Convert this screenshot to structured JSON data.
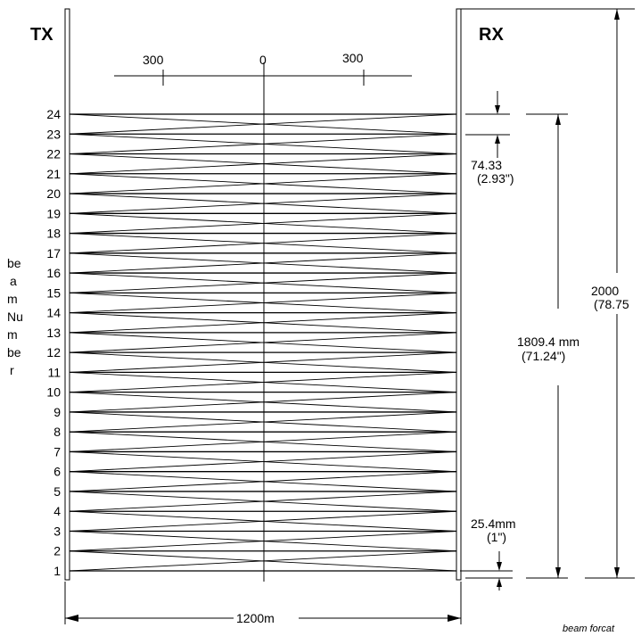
{
  "diagram": {
    "tx_label": "TX",
    "rx_label": "RX",
    "scale_labels": [
      "300",
      "0",
      "300"
    ],
    "beam_numbers": [
      "1",
      "2",
      "3",
      "4",
      "5",
      "6",
      "7",
      "8",
      "9",
      "10",
      "11",
      "12",
      "13",
      "14",
      "15",
      "16",
      "17",
      "18",
      "19",
      "20",
      "21",
      "22",
      "23",
      "24"
    ],
    "side_label_lines": [
      "be",
      "a",
      "m",
      "Nu",
      "m",
      "be",
      "r"
    ],
    "pitch_mm": "74.33",
    "pitch_in": "(2.93\")",
    "lens_offset_mm": "25.4mm",
    "lens_offset_in": "(1\")",
    "protective_height_mm": "1809.4 mm",
    "protective_height_in": "(71.24\")",
    "total_height_mm": "2000",
    "total_height_in": "(78.75",
    "width_label": "1200m",
    "caption": "beam forcat"
  }
}
